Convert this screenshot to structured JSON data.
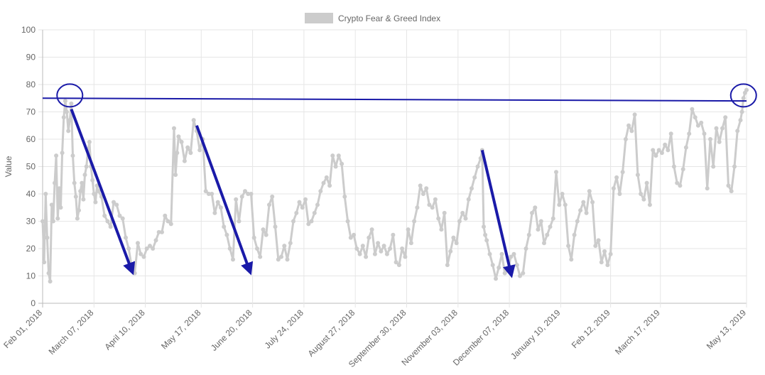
{
  "chart_data": {
    "type": "line",
    "xlabel": "",
    "ylabel": "Value",
    "ylim": [
      0,
      100
    ],
    "yticks": [
      0,
      10,
      20,
      30,
      40,
      50,
      60,
      70,
      80,
      90,
      100
    ],
    "x_start": "2018-02-01",
    "x_end": "2019-05-13",
    "xticks": [
      {
        "label": "Feb 01, 2018",
        "date": "2018-02-01"
      },
      {
        "label": "March 07, 2018",
        "date": "2018-03-07"
      },
      {
        "label": "April 10, 2018",
        "date": "2018-04-10"
      },
      {
        "label": "May 17, 2018",
        "date": "2018-05-17"
      },
      {
        "label": "June 20, 2018",
        "date": "2018-06-20"
      },
      {
        "label": "July 24, 2018",
        "date": "2018-07-24"
      },
      {
        "label": "August 27, 2018",
        "date": "2018-08-27"
      },
      {
        "label": "September 30, 2018",
        "date": "2018-09-30"
      },
      {
        "label": "November 03, 2018",
        "date": "2018-11-03"
      },
      {
        "label": "December 07, 2018",
        "date": "2018-12-07"
      },
      {
        "label": "January 10, 2019",
        "date": "2019-01-10"
      },
      {
        "label": "Feb 12, 2019",
        "date": "2019-02-12"
      },
      {
        "label": "March 17, 2019",
        "date": "2019-03-17"
      },
      {
        "label": "May 13, 2019",
        "date": "2019-05-13"
      }
    ],
    "grid": true,
    "legend_position": "top",
    "series": [
      {
        "name": "Crypto Fear & Greed Index",
        "color": "#cccccc",
        "points": [
          [
            "2018-02-01",
            30
          ],
          [
            "2018-02-02",
            15
          ],
          [
            "2018-02-03",
            40
          ],
          [
            "2018-02-04",
            24
          ],
          [
            "2018-02-05",
            11
          ],
          [
            "2018-02-06",
            8
          ],
          [
            "2018-02-07",
            36
          ],
          [
            "2018-02-08",
            30
          ],
          [
            "2018-02-09",
            44
          ],
          [
            "2018-02-10",
            54
          ],
          [
            "2018-02-11",
            31
          ],
          [
            "2018-02-12",
            42
          ],
          [
            "2018-02-13",
            35
          ],
          [
            "2018-02-14",
            55
          ],
          [
            "2018-02-15",
            68
          ],
          [
            "2018-02-16",
            74
          ],
          [
            "2018-02-17",
            70
          ],
          [
            "2018-02-18",
            63
          ],
          [
            "2018-02-19",
            67
          ],
          [
            "2018-02-20",
            73
          ],
          [
            "2018-02-21",
            54
          ],
          [
            "2018-02-22",
            44
          ],
          [
            "2018-02-23",
            39
          ],
          [
            "2018-02-24",
            31
          ],
          [
            "2018-02-25",
            34
          ],
          [
            "2018-02-26",
            41
          ],
          [
            "2018-02-27",
            44
          ],
          [
            "2018-02-28",
            38
          ],
          [
            "2018-03-01",
            47
          ],
          [
            "2018-03-02",
            50
          ],
          [
            "2018-03-03",
            56
          ],
          [
            "2018-03-04",
            59
          ],
          [
            "2018-03-05",
            50
          ],
          [
            "2018-03-06",
            45
          ],
          [
            "2018-03-07",
            40
          ],
          [
            "2018-03-08",
            37
          ],
          [
            "2018-03-09",
            43
          ],
          [
            "2018-03-10",
            41
          ],
          [
            "2018-03-12",
            39
          ],
          [
            "2018-03-14",
            32
          ],
          [
            "2018-03-16",
            30
          ],
          [
            "2018-03-18",
            28
          ],
          [
            "2018-03-20",
            37
          ],
          [
            "2018-03-22",
            36
          ],
          [
            "2018-03-24",
            32
          ],
          [
            "2018-03-26",
            31
          ],
          [
            "2018-03-28",
            24
          ],
          [
            "2018-03-30",
            20
          ],
          [
            "2018-04-01",
            13
          ],
          [
            "2018-04-03",
            11
          ],
          [
            "2018-04-05",
            22
          ],
          [
            "2018-04-07",
            18
          ],
          [
            "2018-04-09",
            17
          ],
          [
            "2018-04-11",
            20
          ],
          [
            "2018-04-13",
            21
          ],
          [
            "2018-04-15",
            20
          ],
          [
            "2018-04-17",
            23
          ],
          [
            "2018-04-19",
            26
          ],
          [
            "2018-04-21",
            26
          ],
          [
            "2018-04-23",
            32
          ],
          [
            "2018-04-25",
            30
          ],
          [
            "2018-04-27",
            29
          ],
          [
            "2018-04-29",
            64
          ],
          [
            "2018-04-30",
            47
          ],
          [
            "2018-05-01",
            55
          ],
          [
            "2018-05-02",
            61
          ],
          [
            "2018-05-04",
            59
          ],
          [
            "2018-05-06",
            52
          ],
          [
            "2018-05-08",
            57
          ],
          [
            "2018-05-10",
            55
          ],
          [
            "2018-05-12",
            67
          ],
          [
            "2018-05-14",
            63
          ],
          [
            "2018-05-16",
            56
          ],
          [
            "2018-05-18",
            60
          ],
          [
            "2018-05-20",
            41
          ],
          [
            "2018-05-22",
            40
          ],
          [
            "2018-05-24",
            40
          ],
          [
            "2018-05-26",
            33
          ],
          [
            "2018-05-28",
            37
          ],
          [
            "2018-05-30",
            35
          ],
          [
            "2018-06-01",
            28
          ],
          [
            "2018-06-03",
            25
          ],
          [
            "2018-06-05",
            20
          ],
          [
            "2018-06-07",
            16
          ],
          [
            "2018-06-09",
            38
          ],
          [
            "2018-06-11",
            30
          ],
          [
            "2018-06-13",
            39
          ],
          [
            "2018-06-15",
            41
          ],
          [
            "2018-06-17",
            40
          ],
          [
            "2018-06-19",
            40
          ],
          [
            "2018-06-21",
            24
          ],
          [
            "2018-06-23",
            20
          ],
          [
            "2018-06-25",
            17
          ],
          [
            "2018-06-27",
            27
          ],
          [
            "2018-06-29",
            25
          ],
          [
            "2018-07-01",
            36
          ],
          [
            "2018-07-03",
            39
          ],
          [
            "2018-07-05",
            28
          ],
          [
            "2018-07-07",
            16
          ],
          [
            "2018-07-09",
            17
          ],
          [
            "2018-07-11",
            21
          ],
          [
            "2018-07-13",
            16
          ],
          [
            "2018-07-15",
            22
          ],
          [
            "2018-07-17",
            30
          ],
          [
            "2018-07-19",
            33
          ],
          [
            "2018-07-21",
            37
          ],
          [
            "2018-07-23",
            35
          ],
          [
            "2018-07-25",
            38
          ],
          [
            "2018-07-27",
            29
          ],
          [
            "2018-07-29",
            30
          ],
          [
            "2018-07-31",
            33
          ],
          [
            "2018-08-02",
            36
          ],
          [
            "2018-08-04",
            41
          ],
          [
            "2018-08-06",
            44
          ],
          [
            "2018-08-08",
            46
          ],
          [
            "2018-08-10",
            43
          ],
          [
            "2018-08-12",
            54
          ],
          [
            "2018-08-14",
            50
          ],
          [
            "2018-08-16",
            54
          ],
          [
            "2018-08-18",
            51
          ],
          [
            "2018-08-20",
            39
          ],
          [
            "2018-08-22",
            30
          ],
          [
            "2018-08-24",
            24
          ],
          [
            "2018-08-26",
            25
          ],
          [
            "2018-08-28",
            20
          ],
          [
            "2018-08-30",
            18
          ],
          [
            "2018-09-01",
            21
          ],
          [
            "2018-09-03",
            17
          ],
          [
            "2018-09-05",
            24
          ],
          [
            "2018-09-07",
            27
          ],
          [
            "2018-09-09",
            18
          ],
          [
            "2018-09-11",
            22
          ],
          [
            "2018-09-13",
            19
          ],
          [
            "2018-09-15",
            21
          ],
          [
            "2018-09-17",
            18
          ],
          [
            "2018-09-19",
            20
          ],
          [
            "2018-09-21",
            25
          ],
          [
            "2018-09-23",
            15
          ],
          [
            "2018-09-25",
            14
          ],
          [
            "2018-09-27",
            20
          ],
          [
            "2018-09-29",
            17
          ],
          [
            "2018-10-01",
            27
          ],
          [
            "2018-10-03",
            22
          ],
          [
            "2018-10-05",
            30
          ],
          [
            "2018-10-07",
            35
          ],
          [
            "2018-10-09",
            43
          ],
          [
            "2018-10-11",
            40
          ],
          [
            "2018-10-13",
            42
          ],
          [
            "2018-10-15",
            36
          ],
          [
            "2018-10-17",
            35
          ],
          [
            "2018-10-19",
            38
          ],
          [
            "2018-10-21",
            31
          ],
          [
            "2018-10-23",
            27
          ],
          [
            "2018-10-25",
            33
          ],
          [
            "2018-10-27",
            14
          ],
          [
            "2018-10-29",
            19
          ],
          [
            "2018-10-31",
            24
          ],
          [
            "2018-11-02",
            22
          ],
          [
            "2018-11-04",
            30
          ],
          [
            "2018-11-06",
            33
          ],
          [
            "2018-11-08",
            31
          ],
          [
            "2018-11-10",
            38
          ],
          [
            "2018-11-12",
            42
          ],
          [
            "2018-11-14",
            46
          ],
          [
            "2018-11-16",
            50
          ],
          [
            "2018-11-18",
            53
          ],
          [
            "2018-11-19",
            56
          ],
          [
            "2018-11-20",
            28
          ],
          [
            "2018-11-21",
            25
          ],
          [
            "2018-11-22",
            23
          ],
          [
            "2018-11-24",
            18
          ],
          [
            "2018-11-26",
            14
          ],
          [
            "2018-11-28",
            9
          ],
          [
            "2018-11-30",
            13
          ],
          [
            "2018-12-02",
            18
          ],
          [
            "2018-12-04",
            11
          ],
          [
            "2018-12-06",
            12
          ],
          [
            "2018-12-08",
            17
          ],
          [
            "2018-12-10",
            18
          ],
          [
            "2018-12-12",
            14
          ],
          [
            "2018-12-14",
            10
          ],
          [
            "2018-12-16",
            11
          ],
          [
            "2018-12-18",
            20
          ],
          [
            "2018-12-20",
            25
          ],
          [
            "2018-12-22",
            33
          ],
          [
            "2018-12-24",
            35
          ],
          [
            "2018-12-26",
            27
          ],
          [
            "2018-12-28",
            30
          ],
          [
            "2018-12-30",
            22
          ],
          [
            "2019-01-01",
            25
          ],
          [
            "2019-01-03",
            28
          ],
          [
            "2019-01-05",
            31
          ],
          [
            "2019-01-07",
            48
          ],
          [
            "2019-01-09",
            36
          ],
          [
            "2019-01-11",
            40
          ],
          [
            "2019-01-13",
            36
          ],
          [
            "2019-01-15",
            21
          ],
          [
            "2019-01-17",
            16
          ],
          [
            "2019-01-19",
            25
          ],
          [
            "2019-01-21",
            30
          ],
          [
            "2019-01-23",
            34
          ],
          [
            "2019-01-25",
            37
          ],
          [
            "2019-01-27",
            33
          ],
          [
            "2019-01-29",
            41
          ],
          [
            "2019-01-31",
            37
          ],
          [
            "2019-02-02",
            21
          ],
          [
            "2019-02-04",
            23
          ],
          [
            "2019-02-06",
            15
          ],
          [
            "2019-02-08",
            19
          ],
          [
            "2019-02-10",
            14
          ],
          [
            "2019-02-12",
            18
          ],
          [
            "2019-02-14",
            42
          ],
          [
            "2019-02-16",
            46
          ],
          [
            "2019-02-18",
            40
          ],
          [
            "2019-02-20",
            48
          ],
          [
            "2019-02-22",
            60
          ],
          [
            "2019-02-24",
            65
          ],
          [
            "2019-02-26",
            63
          ],
          [
            "2019-02-28",
            69
          ],
          [
            "2019-03-02",
            47
          ],
          [
            "2019-03-04",
            40
          ],
          [
            "2019-03-06",
            38
          ],
          [
            "2019-03-08",
            44
          ],
          [
            "2019-03-10",
            36
          ],
          [
            "2019-03-12",
            56
          ],
          [
            "2019-03-14",
            54
          ],
          [
            "2019-03-16",
            56
          ],
          [
            "2019-03-18",
            55
          ],
          [
            "2019-03-20",
            58
          ],
          [
            "2019-03-22",
            56
          ],
          [
            "2019-03-24",
            62
          ],
          [
            "2019-03-26",
            50
          ],
          [
            "2019-03-28",
            44
          ],
          [
            "2019-03-30",
            43
          ],
          [
            "2019-04-01",
            49
          ],
          [
            "2019-04-03",
            57
          ],
          [
            "2019-04-05",
            62
          ],
          [
            "2019-04-07",
            71
          ],
          [
            "2019-04-09",
            68
          ],
          [
            "2019-04-11",
            65
          ],
          [
            "2019-04-13",
            66
          ],
          [
            "2019-04-15",
            62
          ],
          [
            "2019-04-17",
            42
          ],
          [
            "2019-04-19",
            60
          ],
          [
            "2019-04-21",
            50
          ],
          [
            "2019-04-23",
            64
          ],
          [
            "2019-04-25",
            59
          ],
          [
            "2019-04-27",
            64
          ],
          [
            "2019-04-29",
            68
          ],
          [
            "2019-05-01",
            43
          ],
          [
            "2019-05-03",
            41
          ],
          [
            "2019-05-05",
            50
          ],
          [
            "2019-05-07",
            63
          ],
          [
            "2019-05-09",
            67
          ],
          [
            "2019-05-10",
            70
          ],
          [
            "2019-05-11",
            75
          ],
          [
            "2019-05-12",
            77
          ],
          [
            "2019-05-13",
            78
          ]
        ]
      }
    ],
    "annotations": {
      "color": "#1a1aa8",
      "reference_line": {
        "from": [
          "2018-02-01",
          75
        ],
        "to": [
          "2019-05-13",
          74
        ]
      },
      "circles": [
        {
          "center": [
            "2018-02-19",
            76
          ]
        },
        {
          "center": [
            "2019-05-11",
            76
          ]
        }
      ],
      "arrows": [
        {
          "from": [
            "2018-02-20",
            71
          ],
          "to": [
            "2018-04-01",
            12
          ]
        },
        {
          "from": [
            "2018-05-14",
            65
          ],
          "to": [
            "2018-06-18",
            12
          ]
        },
        {
          "from": [
            "2018-11-19",
            56
          ],
          "to": [
            "2018-12-08",
            11
          ]
        }
      ]
    }
  }
}
